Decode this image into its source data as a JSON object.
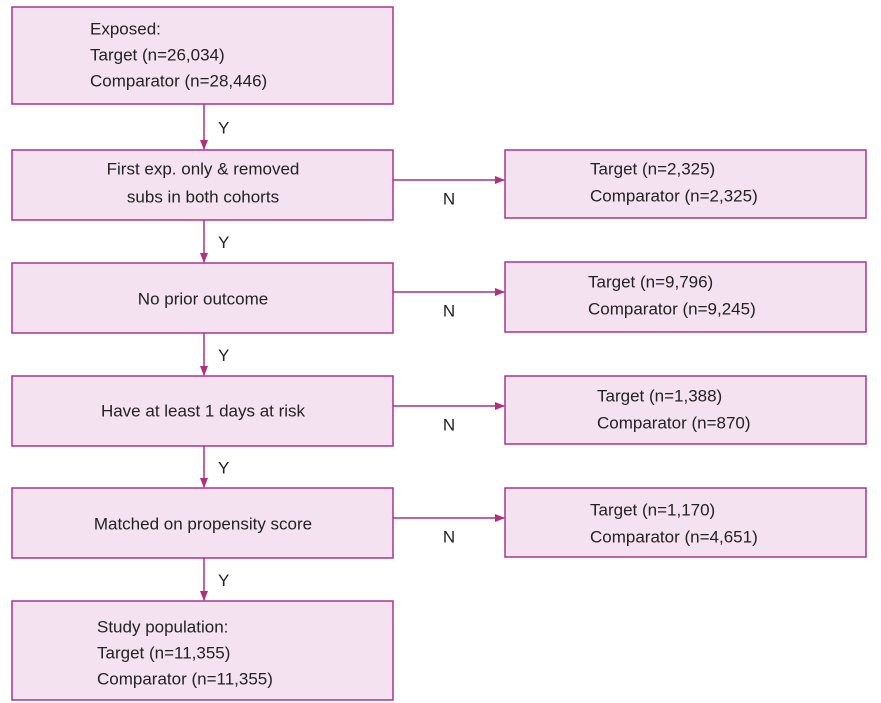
{
  "nodes": [
    {
      "lines": [
        "Exposed:",
        "Target (n=26,034)",
        "Comparator (n=28,446)"
      ]
    },
    {
      "lines": [
        "First exp. only & removed",
        "subs in both cohorts"
      ]
    },
    {
      "lines": [
        "No prior outcome"
      ]
    },
    {
      "lines": [
        "Have at least 1 days at risk"
      ]
    },
    {
      "lines": [
        "Matched on propensity score"
      ]
    },
    {
      "lines": [
        "Study population:",
        "Target (n=11,355)",
        "Comparator (n=11,355)"
      ]
    }
  ],
  "exclusions": [
    {
      "lines": [
        "Target (n=2,325)",
        "Comparator (n=2,325)"
      ]
    },
    {
      "lines": [
        "Target (n=9,796)",
        "Comparator (n=9,245)"
      ]
    },
    {
      "lines": [
        "Target (n=1,388)",
        "Comparator (n=870)"
      ]
    },
    {
      "lines": [
        "Target (n=1,170)",
        "Comparator (n=4,651)"
      ]
    }
  ],
  "flow_edges": [
    {
      "label": "Y"
    },
    {
      "label": "Y"
    },
    {
      "label": "Y"
    },
    {
      "label": "Y"
    },
    {
      "label": "Y"
    }
  ],
  "exclusion_edges": [
    {
      "label": "N"
    },
    {
      "label": "N"
    },
    {
      "label": "N"
    },
    {
      "label": "N"
    }
  ]
}
